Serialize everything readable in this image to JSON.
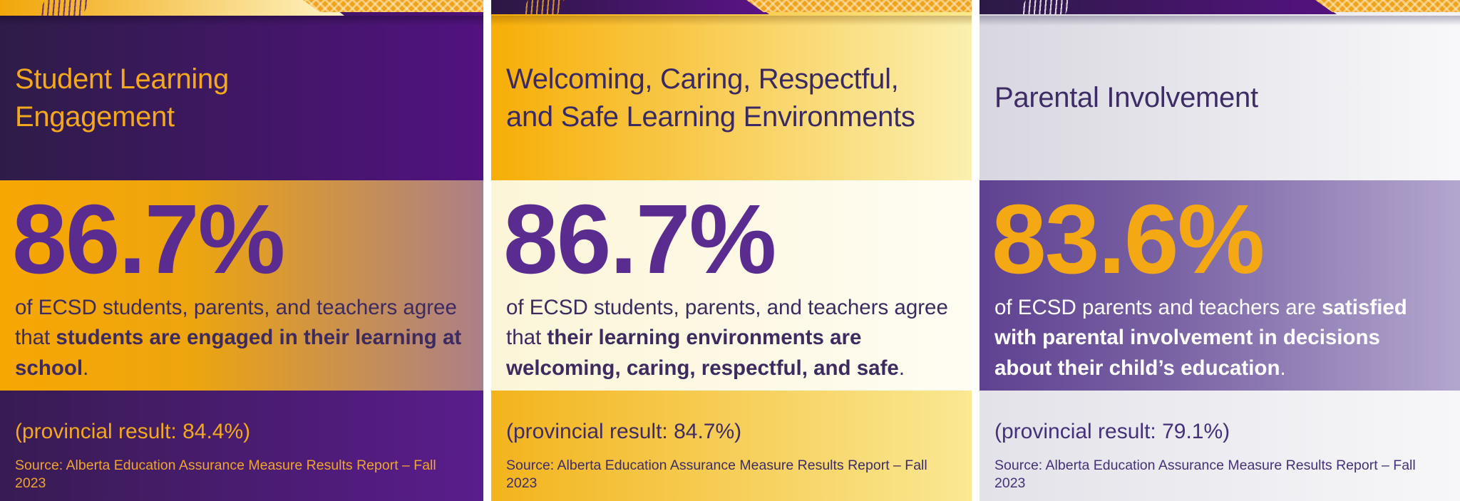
{
  "panels": [
    {
      "id": "student-learning-engagement",
      "title": "Student Learning Engagement",
      "stat_value": "86.7%",
      "description": {
        "regular": "of ECSD students, parents, and teachers agree that ",
        "bold": "students are engaged in their learning at school",
        "suffix": "."
      },
      "provincial": "(provincial result: 84.4%)",
      "source": "Source: Alberta Education Assurance Measure Results Report – Fall 2023",
      "colors": {
        "strip-base-a": "#2e1b47",
        "strip-base-b": "#4d1079",
        "band-a": "#f2a60a",
        "band-b": "#fdf3c3",
        "band-h": "22px",
        "hatch": "rgba(91,36,112,0.85)",
        "chev-bg": "#efa31d",
        "chev-line": "rgba(253,236,195,0.55)",
        "hdr-a": "#2e1c48",
        "hdr-b": "#521280",
        "title": "#f3a81d",
        "strip-shadow": "rgba(15,5,30,0.35)",
        "stat-a": "#f7a702",
        "stat-b": "#eda50f",
        "stat-c": "#ab7f88",
        "pct": "#5b2c90",
        "desc": "#3d2a5f",
        "ftr-a": "#381b53",
        "ftr-b": "#5a1d8c",
        "prov": "#f3a81d",
        "src": "#efa52f",
        "band-w": "483px",
        "chev-w": "253px",
        "title-w": "500px"
      }
    },
    {
      "id": "welcoming-caring-respectful-safe",
      "title": "Welcoming, Caring, Respectful, and Safe Learning Environments",
      "stat_value": "86.7%",
      "description": {
        "regular": "of ECSD students, parents, and teachers agree that ",
        "bold": "their learning environments are welcoming, caring, respectful, and safe",
        "suffix": "."
      },
      "provincial": "(provincial result: 84.7%)",
      "source": "Source: Alberta Education Assurance Measure Results Report – Fall 2023",
      "colors": {
        "strip-base-a": "#f5ac08",
        "strip-base-b": "#fbe98e",
        "band-a": "#2b1843",
        "band-b": "#5a1387",
        "band-h": "20px",
        "hatch": "rgba(217,155,46,0.9)",
        "chev-bg": "#efa31d",
        "chev-line": "rgba(253,236,195,0.55)",
        "hdr-a": "#f7ae06",
        "hdr-b": "#fbf0b0",
        "title": "#3a2a63",
        "strip-shadow": "rgba(125,80,10,0.35)",
        "stat-a": "#fcf5d8",
        "stat-b": "#fdf8e2",
        "stat-c": "#fffdf3",
        "pct": "#5b2c90",
        "desc": "#3d2a5f",
        "ftr-a": "#f3b41d",
        "ftr-b": "#fae893",
        "prov": "#3e2c66",
        "src": "#3e2c66",
        "band-w": "390px",
        "chev-w": "316px",
        "title-w": "600px"
      }
    },
    {
      "id": "parental-involvement",
      "title": "Parental Involvement",
      "stat_value": "83.6%",
      "description": {
        "regular": "of ECSD parents and teachers are ",
        "bold": "satisfied with parental involvement in decisions about their child’s education",
        "suffix": "."
      },
      "provincial": "(provincial result: 79.1%)",
      "source": "Source: Alberta Education Assurance Measure Results Report – Fall 2023",
      "colors": {
        "strip-base-a": "#d9d8e1",
        "strip-base-b": "#f3f3f6",
        "band-a": "#2c1a45",
        "band-b": "#541280",
        "band-h": "20px",
        "hatch": "rgba(255,255,255,0.8)",
        "chev-bg": "#efa31d",
        "chev-line": "rgba(253,236,195,0.55)",
        "hdr-a": "#d8d7e0",
        "hdr-b": "#f8f8fa",
        "title": "#3e2c66",
        "strip-shadow": "rgba(85,75,110,0.40)",
        "stat-a": "#5f4191",
        "stat-b": "#7a63a4",
        "stat-c": "#b3a6ce",
        "pct": "#f3a814",
        "desc": "#ffffff",
        "ftr-a": "#e3e2e9",
        "ftr-b": "#f7f7f9",
        "prov": "#45307a",
        "src": "#45307a",
        "band-w": "501px",
        "chev-w": "203px",
        "title-w": "400px"
      }
    }
  ]
}
